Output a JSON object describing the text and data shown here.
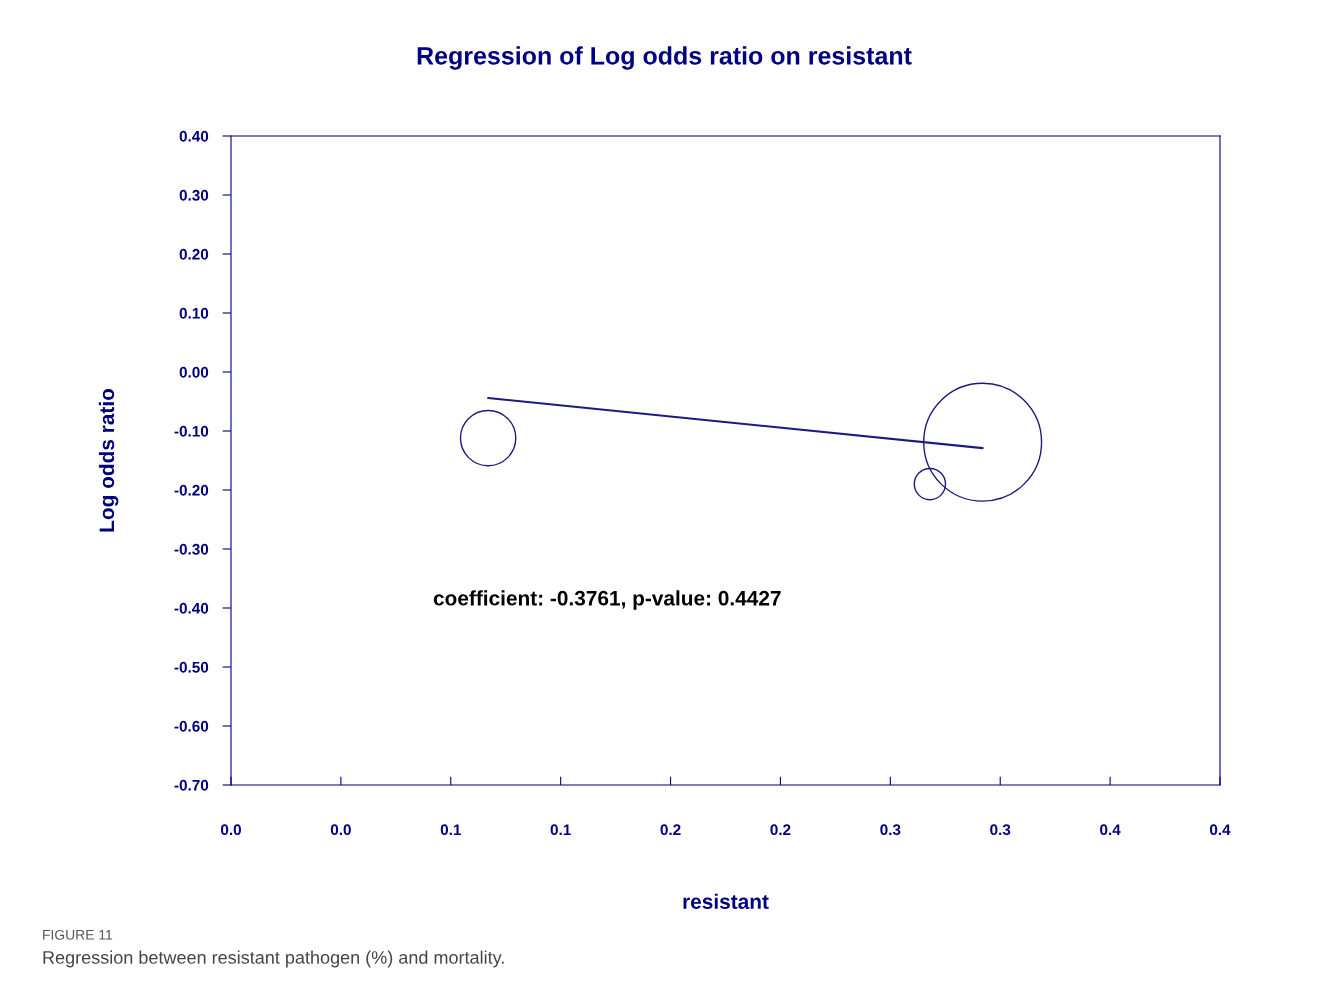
{
  "chart_data": {
    "type": "bubble",
    "title": "Regression of Log odds ratio on resistant",
    "xlabel": "resistant",
    "ylabel": "Log odds ratio",
    "xlim": [
      0,
      0.45
    ],
    "ylim": [
      -0.7,
      0.4
    ],
    "xticks": [
      {
        "value": 0,
        "label": "0.0"
      },
      {
        "value": 0.05,
        "label": "0.0"
      },
      {
        "value": 0.1,
        "label": "0.1"
      },
      {
        "value": 0.15,
        "label": "0.1"
      },
      {
        "value": 0.2,
        "label": "0.2"
      },
      {
        "value": 0.25,
        "label": "0.2"
      },
      {
        "value": 0.3,
        "label": "0.3"
      },
      {
        "value": 0.35,
        "label": "0.3"
      },
      {
        "value": 0.4,
        "label": "0.4"
      },
      {
        "value": 0.45,
        "label": "0.4"
      }
    ],
    "yticks": [
      {
        "value": 0.4,
        "label": "0.40"
      },
      {
        "value": 0.3,
        "label": "0.30"
      },
      {
        "value": 0.2,
        "label": "0.20"
      },
      {
        "value": 0.1,
        "label": "0.10"
      },
      {
        "value": 0,
        "label": "0.00"
      },
      {
        "value": -0.1,
        "label": "-0.10"
      },
      {
        "value": -0.2,
        "label": "-0.20"
      },
      {
        "value": -0.3,
        "label": "-0.30"
      },
      {
        "value": -0.4,
        "label": "-0.40"
      },
      {
        "value": -0.5,
        "label": "-0.50"
      },
      {
        "value": -0.6,
        "label": "-0.60"
      },
      {
        "value": -0.7,
        "label": "-0.70"
      }
    ],
    "grid": false,
    "legend": false,
    "series": [
      {
        "color": "#1a1a80",
        "x": [
          0.117,
          0.318,
          0.342
        ],
        "values": [
          -0.112,
          -0.19,
          -0.119
        ],
        "sizes": [
          0.22,
          0.07,
          1
        ]
      },
      {
        "type": "line",
        "color": "#1a1a80",
        "x": [
          0.117,
          0.342
        ],
        "values": [
          -0.044,
          -0.129
        ]
      }
    ],
    "annotations": [
      "coefficient: -0.3761, p-value: 0.4427",
      "FIGURE 11",
      "Regression between resistant pathogen (%) and mortality."
    ]
  }
}
